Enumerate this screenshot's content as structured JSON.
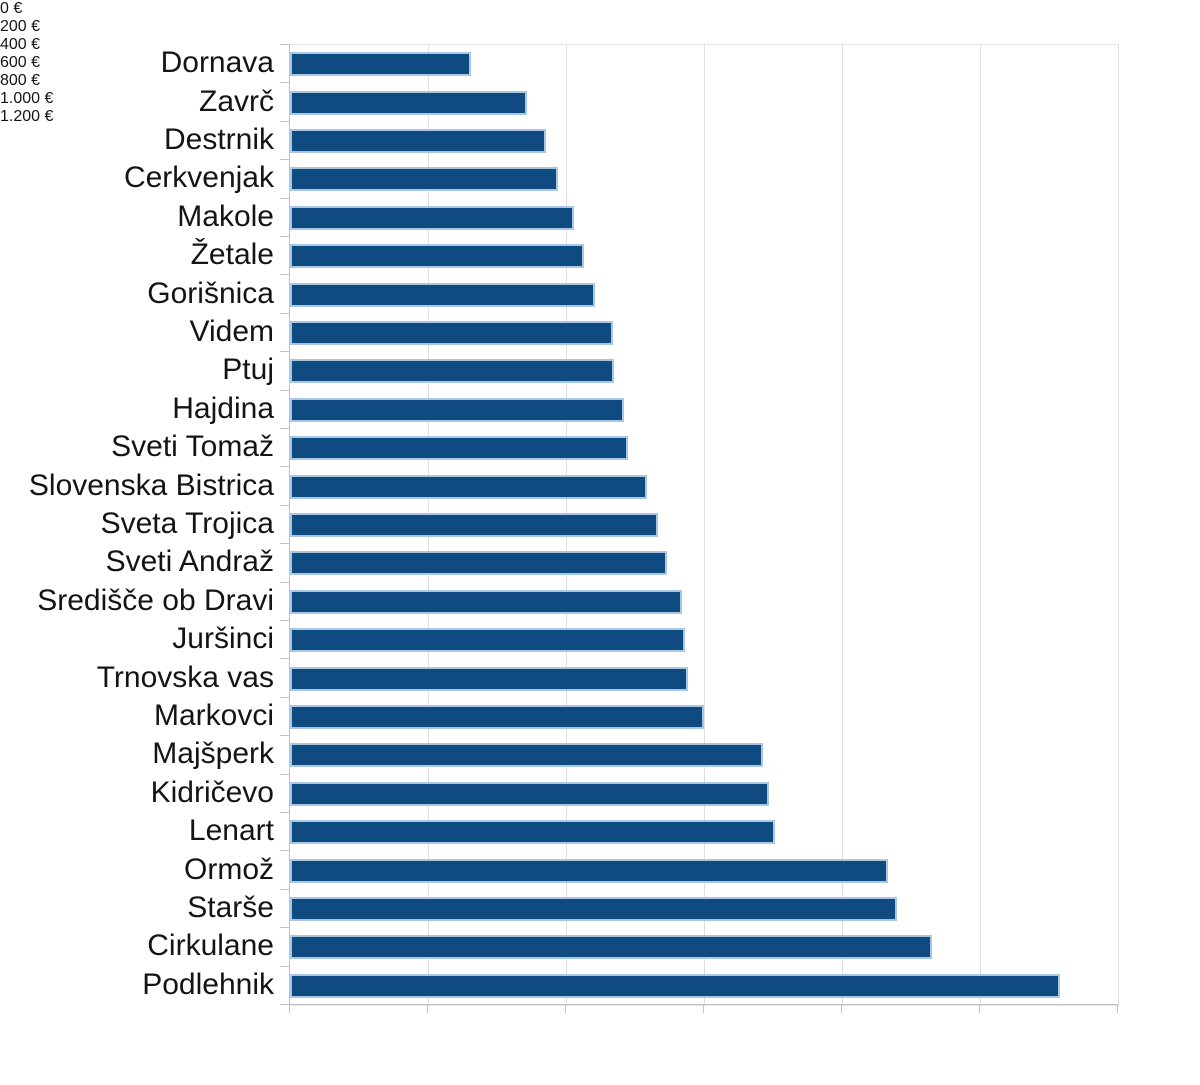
{
  "chart_data": {
    "type": "bar",
    "orientation": "horizontal",
    "title": "",
    "xlabel": "",
    "ylabel": "",
    "categories": [
      "Dornava",
      "Zavrč",
      "Destrnik",
      "Cerkvenjak",
      "Makole",
      "Žetale",
      "Gorišnica",
      "Videm",
      "Ptuj",
      "Hajdina",
      "Sveti Tomaž",
      "Slovenska Bistrica",
      "Sveta Trojica",
      "Sveti Andraž",
      "Središče ob Dravi",
      "Juršinci",
      "Trnovska vas",
      "Markovci",
      "Majšperk",
      "Kidričevo",
      "Lenart",
      "Ormož",
      "Starše",
      "Cirkulane",
      "Podlehnik"
    ],
    "values": [
      263,
      344,
      371,
      389,
      412,
      426,
      442,
      468,
      470,
      484,
      490,
      517,
      533,
      546,
      568,
      573,
      577,
      600,
      686,
      694,
      703,
      866,
      880,
      931,
      1116
    ],
    "value_unit": "€",
    "xlim": [
      0,
      1200
    ],
    "x_ticks": [
      {
        "value": 0,
        "label": "0 €"
      },
      {
        "value": 200,
        "label": "200 €"
      },
      {
        "value": 400,
        "label": "400 €"
      },
      {
        "value": 600,
        "label": "600 €"
      },
      {
        "value": 800,
        "label": "800 €"
      },
      {
        "value": 1000,
        "label": "1.000 €"
      },
      {
        "value": 1200,
        "label": "1.200 €"
      }
    ],
    "grid": true,
    "legend": false,
    "colors": {
      "bar_fill": "#0F4A80",
      "bar_border": "#A9C7E2",
      "gridline": "#DEDEDE",
      "axis": "#C2C2C2",
      "plot_border": "#E6E6E6",
      "text": "#141414",
      "background": "#FFFFFF"
    }
  }
}
